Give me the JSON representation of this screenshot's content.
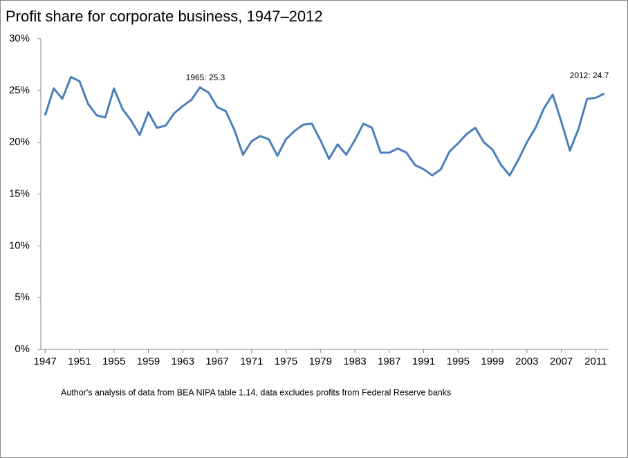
{
  "chart_data": {
    "type": "line",
    "title": "Profit share for corporate business, 1947–2012",
    "note": "Author's analysis of data from BEA NIPA table 1.14, data excludes profits from Federal Reserve banks",
    "annotations": [
      "1965: 25.3",
      "2012: 24.7"
    ],
    "x": [
      1947,
      1948,
      1949,
      1950,
      1951,
      1952,
      1953,
      1954,
      1955,
      1956,
      1957,
      1958,
      1959,
      1960,
      1961,
      1962,
      1963,
      1964,
      1965,
      1966,
      1967,
      1968,
      1969,
      1970,
      1971,
      1972,
      1973,
      1974,
      1975,
      1976,
      1977,
      1978,
      1979,
      1980,
      1981,
      1982,
      1983,
      1984,
      1985,
      1986,
      1987,
      1988,
      1989,
      1990,
      1991,
      1992,
      1993,
      1994,
      1995,
      1996,
      1997,
      1998,
      1999,
      2000,
      2001,
      2002,
      2003,
      2004,
      2005,
      2006,
      2007,
      2008,
      2009,
      2010,
      2011,
      2012
    ],
    "series": [
      {
        "name": "Profit share",
        "color": "#4a7ebb",
        "values": [
          22.6,
          25.2,
          24.2,
          26.3,
          25.9,
          23.7,
          22.6,
          22.4,
          25.2,
          23.2,
          22.1,
          20.7,
          22.9,
          21.4,
          21.6,
          22.8,
          23.5,
          24.1,
          25.3,
          24.8,
          23.4,
          23.0,
          21.2,
          18.8,
          20.1,
          20.6,
          20.3,
          18.7,
          20.3,
          21.1,
          21.7,
          21.8,
          20.2,
          18.4,
          19.8,
          18.8,
          20.2,
          21.8,
          21.4,
          19.0,
          19.0,
          19.4,
          19.0,
          17.8,
          17.4,
          16.8,
          17.4,
          19.1,
          19.9,
          20.8,
          21.4,
          20.0,
          19.3,
          17.8,
          16.8,
          18.3,
          20.0,
          21.4,
          23.3,
          24.6,
          22.0,
          19.2,
          21.3,
          24.2,
          24.3,
          24.7
        ]
      }
    ],
    "xlim": [
      1946.5,
      2012.5
    ],
    "xticks": [
      1947,
      1951,
      1955,
      1959,
      1963,
      1967,
      1971,
      1975,
      1979,
      1983,
      1987,
      1991,
      1995,
      1999,
      2003,
      2007,
      2011
    ],
    "ylim": [
      0,
      30
    ],
    "yticks": [
      {
        "value": 0,
        "label": "0%"
      },
      {
        "value": 5,
        "label": "5%"
      },
      {
        "value": 10,
        "label": "10%"
      },
      {
        "value": 15,
        "label": "15%"
      },
      {
        "value": 20,
        "label": "20%"
      },
      {
        "value": 25,
        "label": "25%"
      },
      {
        "value": 30,
        "label": "30%"
      }
    ],
    "grid": false
  }
}
